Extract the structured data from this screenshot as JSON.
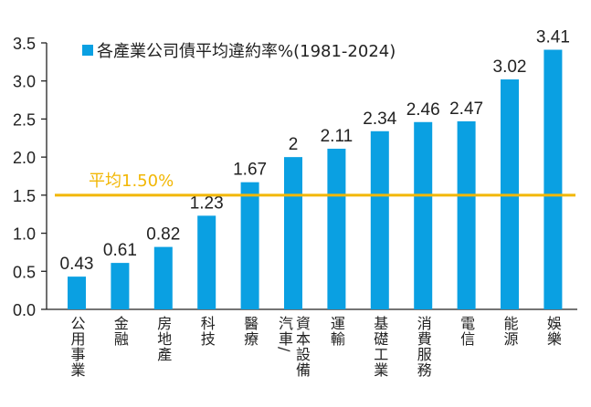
{
  "chart_data": {
    "type": "bar",
    "title": "",
    "legend": {
      "label": "各產業公司債平均違約率%(1981-2024)",
      "placement": "top-left"
    },
    "categories": [
      "公用事業",
      "金融",
      "房地產",
      "科技",
      "醫療",
      "汽車/資本設備",
      "運輸",
      "基礎工業",
      "消費服務",
      "電信",
      "能源",
      "娛樂"
    ],
    "values": [
      0.43,
      0.61,
      0.82,
      1.23,
      1.67,
      2,
      2.11,
      2.34,
      2.46,
      2.47,
      3.02,
      3.41
    ],
    "data_labels": [
      "0.43",
      "0.61",
      "0.82",
      "1.23",
      "1.67",
      "2",
      "2.11",
      "2.34",
      "2.46",
      "2.47",
      "3.02",
      "3.41"
    ],
    "yticks": [
      "0.0",
      "0.5",
      "1.0",
      "1.5",
      "2.0",
      "2.5",
      "3.0",
      "3.5"
    ],
    "ylim": [
      0,
      3.5
    ],
    "reference_line": {
      "value": 1.5,
      "label": "平均1.50%",
      "color": "#f2b705"
    },
    "bar_color": "#0aa0e2",
    "grid": false
  }
}
